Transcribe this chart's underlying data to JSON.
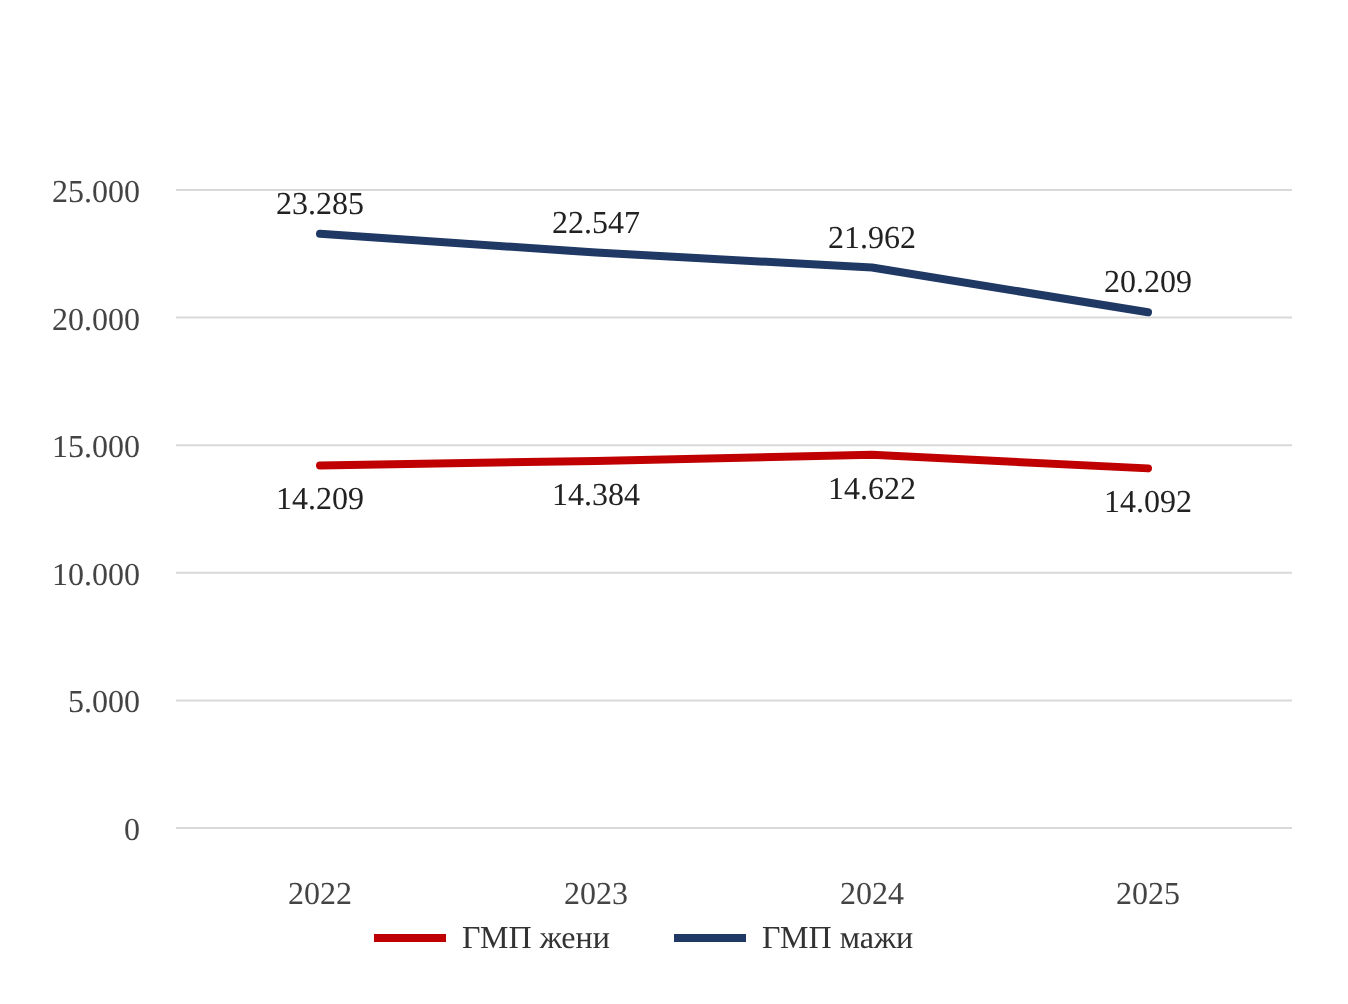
{
  "chart_data": {
    "type": "line",
    "categories": [
      "2022",
      "2023",
      "2024",
      "2025"
    ],
    "series": [
      {
        "name": "ГМП жени",
        "color": "#c00000",
        "values": [
          14209,
          14384,
          14622,
          14092
        ],
        "value_labels": [
          "14.209",
          "14.384",
          "14.622",
          "14.092"
        ]
      },
      {
        "name": "ГМП мажи",
        "color": "#1f3864",
        "values": [
          23285,
          22547,
          21962,
          20209
        ],
        "value_labels": [
          "23.285",
          "22.547",
          "21.962",
          "20.209"
        ]
      }
    ],
    "ylim": [
      0,
      25000
    ],
    "yticks": [
      {
        "value": 0,
        "label": "0"
      },
      {
        "value": 5000,
        "label": "5.000"
      },
      {
        "value": 10000,
        "label": "10.000"
      },
      {
        "value": 15000,
        "label": "15.000"
      },
      {
        "value": 20000,
        "label": "20.000"
      },
      {
        "value": 25000,
        "label": "25.000"
      }
    ],
    "grid": "y",
    "legend": "bottom",
    "marker": "none",
    "line_style": "solid"
  }
}
